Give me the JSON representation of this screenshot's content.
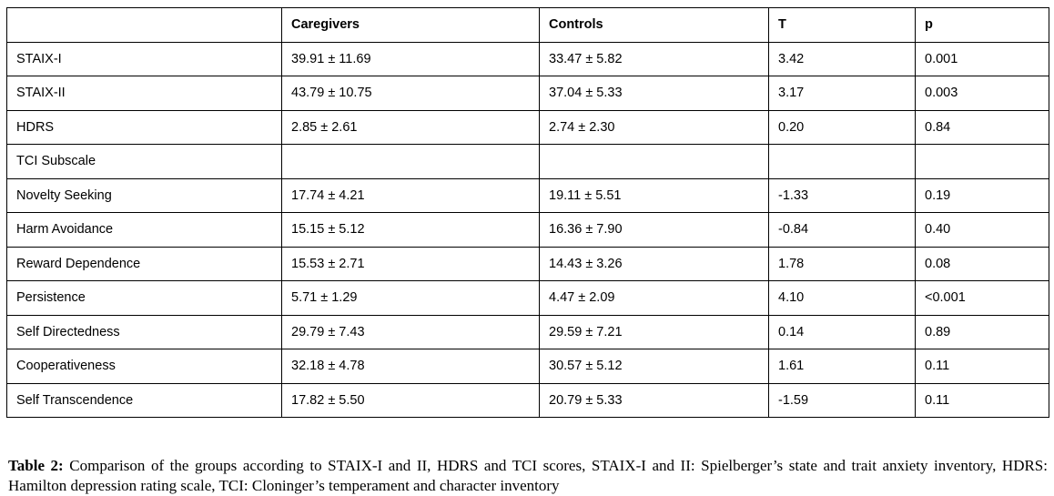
{
  "table": {
    "headers": [
      "",
      "Caregivers",
      "Controls",
      "T",
      "p"
    ],
    "rows": [
      [
        "STAIX-I",
        "39.91 ± 11.69",
        "33.47 ± 5.82",
        "3.42",
        "0.001"
      ],
      [
        "STAIX-II",
        "43.79 ± 10.75",
        "37.04 ± 5.33",
        "3.17",
        "0.003"
      ],
      [
        "HDRS",
        "2.85 ± 2.61",
        "2.74 ± 2.30",
        "0.20",
        "0.84"
      ],
      [
        "TCI Subscale",
        "",
        "",
        "",
        ""
      ],
      [
        "Novelty Seeking",
        "17.74 ± 4.21",
        "19.11 ± 5.51",
        "-1.33",
        "0.19"
      ],
      [
        "Harm Avoidance",
        "15.15 ± 5.12",
        "16.36 ± 7.90",
        "-0.84",
        "0.40"
      ],
      [
        "Reward Dependence",
        "15.53 ± 2.71",
        "14.43 ± 3.26",
        "1.78",
        "0.08"
      ],
      [
        "Persistence",
        "5.71 ± 1.29",
        "4.47 ± 2.09",
        "4.10",
        "<0.001"
      ],
      [
        "Self Directedness",
        "29.79 ± 7.43",
        "29.59 ± 7.21",
        "0.14",
        "0.89"
      ],
      [
        "Cooperativeness",
        "32.18 ± 4.78",
        "30.57 ± 5.12",
        "1.61",
        "0.11"
      ],
      [
        "Self Transcendence",
        "17.82 ± 5.50",
        "20.79 ± 5.33",
        "-1.59",
        "0.11"
      ]
    ]
  },
  "caption": {
    "label": "Table 2:",
    "text": "Comparison of the groups according to STAIX-I and II, HDRS and TCI scores, STAIX-I and II: Spielberger’s state and trait anxiety inventory, HDRS: Hamilton depression rating scale, TCI: Cloninger’s temperament and character inventory"
  }
}
